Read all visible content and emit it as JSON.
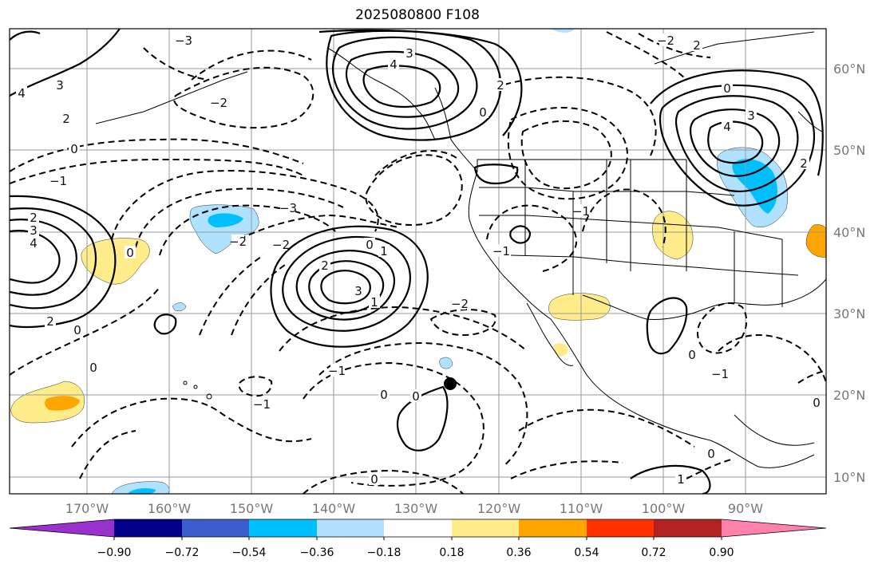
{
  "title": "2025080800 F108",
  "lon_labels": [
    "170°W",
    "160°W",
    "150°W",
    "140°W",
    "130°W",
    "120°W",
    "110°W",
    "100°W",
    "90°W"
  ],
  "lat_labels": [
    "60°N",
    "50°N",
    "40°N",
    "30°N",
    "20°N",
    "10°N"
  ],
  "colorbar": {
    "colors": [
      "#9932cc",
      "#00008b",
      "#3a5fcd",
      "#00bfff",
      "#b0e2ff",
      "#ffffff",
      "#ffec8b",
      "#ffa500",
      "#ff3300",
      "#b22222",
      "#ff82ab"
    ],
    "ticks": [
      "−0.90",
      "−0.72",
      "−0.54",
      "−0.36",
      "−0.18",
      "0.18",
      "0.36",
      "0.54",
      "0.72",
      "0.90"
    ]
  },
  "contour_labels": [
    "0",
    "1",
    "2",
    "3",
    "4",
    "−1",
    "−2",
    "−3"
  ],
  "colors": {
    "contour": "#000000",
    "grid": "#999999",
    "coast": "#000000"
  }
}
